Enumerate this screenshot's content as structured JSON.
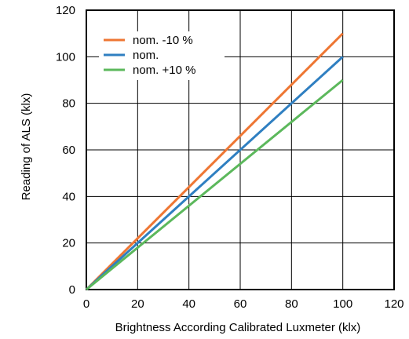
{
  "chart_data": {
    "type": "line",
    "title": "",
    "xlabel": "Brightness According Calibrated Luxmeter (klx)",
    "ylabel": "Reading of ALS (klx)",
    "xlim": [
      0,
      120
    ],
    "ylim": [
      0,
      120
    ],
    "xticks": [
      0,
      20,
      40,
      60,
      80,
      100,
      120
    ],
    "yticks": [
      0,
      20,
      40,
      60,
      80,
      100,
      120
    ],
    "grid": true,
    "legend_position": "top-left",
    "x": [
      0,
      100
    ],
    "series": [
      {
        "name": "nom. -10 %",
        "color": "#ee7633",
        "values": [
          0,
          110
        ]
      },
      {
        "name": "nom.",
        "color": "#2f7fc1",
        "values": [
          0,
          100
        ]
      },
      {
        "name": "nom. +10 %",
        "color": "#5cb85c",
        "values": [
          0,
          90
        ]
      }
    ]
  }
}
